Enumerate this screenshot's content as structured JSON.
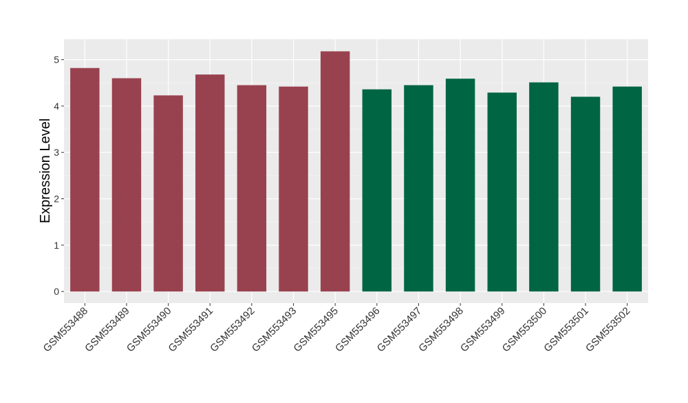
{
  "chart_data": {
    "type": "bar",
    "title": "",
    "xlabel": "",
    "ylabel": "Expression Level",
    "ylim": [
      -0.25,
      5.44
    ],
    "yticks": [
      0,
      1,
      2,
      3,
      4,
      5
    ],
    "grid": true,
    "categories": [
      "GSM553488",
      "GSM553489",
      "GSM553490",
      "GSM553491",
      "GSM553492",
      "GSM553493",
      "GSM553495",
      "GSM553496",
      "GSM553497",
      "GSM553498",
      "GSM553499",
      "GSM553500",
      "GSM553501",
      "GSM553502"
    ],
    "values": [
      4.82,
      4.6,
      4.23,
      4.68,
      4.45,
      4.42,
      5.18,
      4.36,
      4.45,
      4.59,
      4.29,
      4.51,
      4.2,
      4.42
    ],
    "groups": [
      0,
      0,
      0,
      0,
      0,
      0,
      0,
      1,
      1,
      1,
      1,
      1,
      1,
      1
    ],
    "colors": [
      "#99424F",
      "#006543"
    ]
  }
}
